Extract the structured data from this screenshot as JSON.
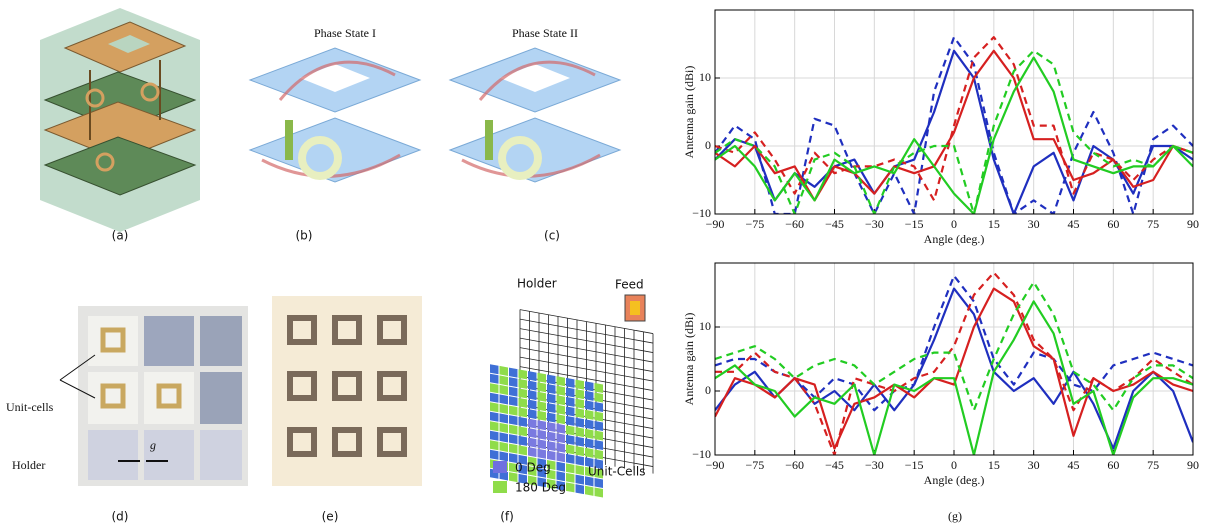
{
  "panels": {
    "a": "(a)",
    "b": "(b)",
    "c": "(c)",
    "d": "(d)",
    "e": "(e)",
    "f": "(f)",
    "g": "(g)",
    "phase_state_1": "Phase State I",
    "phase_state_2": "Phase State II",
    "d_unit_cells": "Unit-cells",
    "d_holder": "Holder",
    "d_gap": "g",
    "f_holder": "Holder",
    "f_feed": "Feed",
    "f_legend_0": "0 Deg",
    "f_legend_180": "180 Deg",
    "f_unit_cells": "Unit-Cells"
  },
  "chart_data": [
    {
      "type": "line",
      "xlabel": "Angle (deg.)",
      "ylabel": "Antenna gain (dBi)",
      "xlim": [
        -90,
        90
      ],
      "ylim": [
        -10,
        20
      ],
      "xticks": [
        {
          "value": -90,
          "label": "−90"
        },
        {
          "value": -75,
          "label": "−75"
        },
        {
          "value": -60,
          "label": "−60"
        },
        {
          "value": -45,
          "label": "−45"
        },
        {
          "value": -30,
          "label": "−30"
        },
        {
          "value": -15,
          "label": "−15"
        },
        0,
        15,
        30,
        45,
        60,
        75,
        90
      ],
      "yticks": [
        {
          "value": -10,
          "label": "−10"
        },
        0,
        10
      ],
      "grid": true,
      "x": [
        -90,
        -82.5,
        -75,
        -67.5,
        -60,
        -52.5,
        -45,
        -37.5,
        -30,
        -22.5,
        -15,
        -7.5,
        0,
        7.5,
        15,
        22.5,
        30,
        37.5,
        45,
        52.5,
        60,
        67.5,
        75,
        82.5,
        90
      ],
      "series": [
        {
          "color": "#1f2fbf",
          "dashed": false,
          "values": [
            -2,
            1,
            0,
            -8,
            -4,
            -6,
            -3,
            -2,
            -7,
            -3,
            -2,
            5,
            14,
            10,
            -2,
            -10,
            -3,
            -1,
            -8,
            0,
            -2,
            -7,
            0,
            0,
            -2
          ]
        },
        {
          "color": "#1f2fbf",
          "dashed": true,
          "values": [
            -1,
            3,
            1,
            -10,
            -10,
            4,
            3,
            -4,
            -10,
            -4,
            -10,
            8,
            16,
            12,
            -1,
            -10,
            -8,
            -10,
            -1,
            5,
            -1,
            -10,
            1,
            3,
            0
          ]
        },
        {
          "color": "#d62020",
          "dashed": false,
          "values": [
            -1,
            -3,
            0,
            -4,
            -3,
            -8,
            -3,
            -4,
            -7,
            -3,
            -4,
            -3,
            2,
            10,
            14,
            10,
            1,
            1,
            -5,
            -4,
            -2,
            -6,
            -5,
            0,
            -1
          ]
        },
        {
          "color": "#d62020",
          "dashed": true,
          "values": [
            0,
            -1,
            2,
            -2,
            -7,
            -1,
            -4,
            -3,
            -3,
            -2,
            -3,
            -8,
            3,
            13,
            16,
            12,
            3,
            3,
            -7,
            -1,
            -2,
            -5,
            -2,
            0,
            -1
          ]
        },
        {
          "color": "#22cc22",
          "dashed": false,
          "values": [
            -2,
            0,
            -3,
            -8,
            -4,
            -8,
            -2,
            -4,
            -3,
            -4,
            1,
            -3,
            -7,
            -10,
            1,
            8,
            13,
            8,
            -2,
            -3,
            -4,
            -3,
            -3,
            0,
            -3
          ]
        },
        {
          "color": "#22cc22",
          "dashed": true,
          "values": [
            -1,
            1,
            0,
            -3,
            -10,
            -2,
            -1,
            -3,
            -10,
            -3,
            -1,
            0,
            0,
            -10,
            3,
            11,
            14,
            12,
            2,
            -1,
            -3,
            -2,
            -3,
            0,
            -1
          ]
        }
      ]
    },
    {
      "type": "line",
      "xlabel": "Angle (deg.)",
      "ylabel": "Antenna gain (dBi)",
      "xlim": [
        -90,
        90
      ],
      "ylim": [
        -10,
        20
      ],
      "xticks": [
        {
          "value": -90,
          "label": "−90"
        },
        {
          "value": -75,
          "label": "−75"
        },
        {
          "value": -60,
          "label": "−60"
        },
        {
          "value": -45,
          "label": "−45"
        },
        {
          "value": -30,
          "label": "−30"
        },
        {
          "value": -15,
          "label": "−15"
        },
        0,
        15,
        30,
        45,
        60,
        75,
        90
      ],
      "yticks": [
        {
          "value": -10,
          "label": "−10"
        },
        0,
        10
      ],
      "grid": true,
      "x": [
        -90,
        -82.5,
        -75,
        -67.5,
        -60,
        -52.5,
        -45,
        -37.5,
        -30,
        -22.5,
        -15,
        -7.5,
        0,
        7.5,
        15,
        22.5,
        30,
        37.5,
        45,
        52.5,
        60,
        67.5,
        75,
        82.5,
        90
      ],
      "series": [
        {
          "color": "#1f2fbf",
          "dashed": false,
          "values": [
            -3,
            1,
            3,
            -1,
            2,
            -2,
            0,
            -3,
            1,
            -3,
            1,
            8,
            16,
            12,
            3,
            0,
            2,
            -2,
            3,
            -2,
            -9,
            0,
            3,
            0,
            -8
          ]
        },
        {
          "color": "#1f2fbf",
          "dashed": true,
          "values": [
            4,
            5,
            5,
            3,
            2,
            -1,
            2,
            1,
            -3,
            0,
            1,
            10,
            18,
            14,
            5,
            1,
            6,
            5,
            1,
            0,
            4,
            5,
            6,
            5,
            4
          ]
        },
        {
          "color": "#d62020",
          "dashed": false,
          "values": [
            -4,
            2,
            1,
            -1,
            2,
            1,
            -9,
            -2,
            -1,
            1,
            -1,
            2,
            1,
            10,
            16,
            14,
            7,
            5,
            -7,
            2,
            0,
            1,
            3,
            1,
            0
          ]
        },
        {
          "color": "#d62020",
          "dashed": true,
          "values": [
            3,
            3,
            6,
            3,
            2,
            -2,
            -10,
            2,
            1,
            0,
            2,
            3,
            7,
            15,
            18.5,
            15,
            8,
            5,
            -3,
            2,
            0,
            2,
            5,
            3,
            1
          ]
        },
        {
          "color": "#22cc22",
          "dashed": false,
          "values": [
            2,
            4,
            1,
            0,
            -4,
            -1,
            -2,
            1,
            -10,
            1,
            0,
            2,
            2,
            -10,
            3,
            8,
            14,
            9,
            -2,
            0,
            -10,
            -1,
            2,
            2,
            1
          ]
        },
        {
          "color": "#22cc22",
          "dashed": true,
          "values": [
            5,
            6,
            7,
            5,
            2,
            4,
            5,
            4,
            1,
            3,
            5,
            6,
            6,
            -3,
            5,
            12,
            17,
            12,
            3,
            1,
            -3,
            2,
            4,
            4,
            2
          ]
        }
      ]
    }
  ]
}
